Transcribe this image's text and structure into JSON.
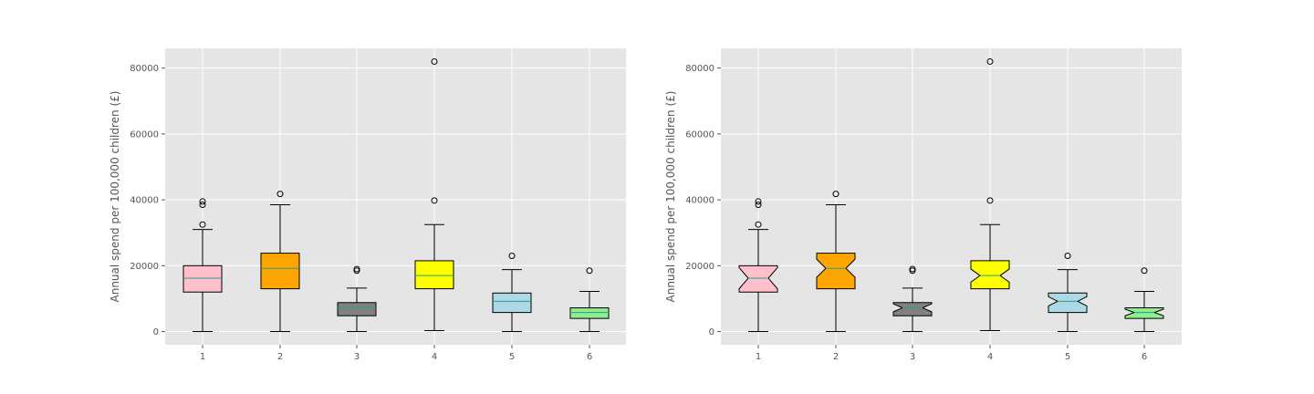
{
  "chart_data": [
    {
      "type": "boxplot",
      "notched": false,
      "style": "ggplot",
      "ylabel": "Annual spend per 100,000 children (£)",
      "categories": [
        "1",
        "2",
        "3",
        "4",
        "5",
        "6"
      ],
      "yticks": [
        0,
        20000,
        40000,
        60000,
        80000
      ],
      "ytick_labels": [
        "0",
        "20000",
        "40000",
        "60000",
        "80000"
      ],
      "ylim": [
        -4000,
        86000
      ],
      "grid": true,
      "boxes": [
        {
          "label": "1",
          "color": "#FFC0CB",
          "whislo": 0,
          "q1": 12000,
          "med": 16200,
          "q3": 20000,
          "whishi": 31000,
          "fliers": [
            32500,
            38500,
            39500
          ]
        },
        {
          "label": "2",
          "color": "#FFA500",
          "whislo": 0,
          "q1": 13000,
          "med": 19200,
          "q3": 23800,
          "whishi": 38500,
          "fliers": [
            41800
          ]
        },
        {
          "label": "3",
          "color": "#808080",
          "whislo": 0,
          "q1": 4800,
          "med": 7200,
          "q3": 8800,
          "whishi": 13200,
          "fliers": [
            18500,
            19000
          ]
        },
        {
          "label": "4",
          "color": "#FFFF00",
          "whislo": 300,
          "q1": 13000,
          "med": 17000,
          "q3": 21500,
          "whishi": 32500,
          "fliers": [
            39800,
            82000
          ]
        },
        {
          "label": "5",
          "color": "#ADD8E6",
          "whislo": 0,
          "q1": 5800,
          "med": 9200,
          "q3": 11700,
          "whishi": 18800,
          "fliers": [
            23000
          ]
        },
        {
          "label": "6",
          "color": "#90EE90",
          "whislo": 0,
          "q1": 4000,
          "med": 5800,
          "q3": 7200,
          "whishi": 12200,
          "fliers": [
            18500
          ]
        }
      ]
    },
    {
      "type": "boxplot",
      "notched": true,
      "style": "ggplot",
      "ylabel": "Annual spend per 100,000 children (£)",
      "categories": [
        "1",
        "2",
        "3",
        "4",
        "5",
        "6"
      ],
      "yticks": [
        0,
        20000,
        40000,
        60000,
        80000
      ],
      "ytick_labels": [
        "0",
        "20000",
        "40000",
        "60000",
        "80000"
      ],
      "ylim": [
        -4000,
        86000
      ],
      "grid": true,
      "boxes": [
        {
          "label": "1",
          "color": "#FFC0CB",
          "whislo": 0,
          "q1": 12000,
          "med": 16200,
          "q3": 20000,
          "whishi": 31000,
          "fliers": [
            32500,
            38500,
            39500
          ],
          "notch": [
            13000,
            19400
          ]
        },
        {
          "label": "2",
          "color": "#FFA500",
          "whislo": 0,
          "q1": 13000,
          "med": 19200,
          "q3": 23800,
          "whishi": 38500,
          "fliers": [
            41800
          ],
          "notch": [
            16500,
            22000
          ]
        },
        {
          "label": "3",
          "color": "#808080",
          "whislo": 0,
          "q1": 4800,
          "med": 7200,
          "q3": 8800,
          "whishi": 13200,
          "fliers": [
            18500,
            19000
          ],
          "notch": [
            6000,
            8400
          ]
        },
        {
          "label": "4",
          "color": "#FFFF00",
          "whislo": 300,
          "q1": 13000,
          "med": 17000,
          "q3": 21500,
          "whishi": 32500,
          "fliers": [
            39800,
            82000
          ],
          "notch": [
            15000,
            19000
          ]
        },
        {
          "label": "5",
          "color": "#ADD8E6",
          "whislo": 0,
          "q1": 5800,
          "med": 9200,
          "q3": 11700,
          "whishi": 18800,
          "fliers": [
            23000
          ],
          "notch": [
            7800,
            10600
          ]
        },
        {
          "label": "6",
          "color": "#90EE90",
          "whislo": 0,
          "q1": 4000,
          "med": 5800,
          "q3": 7200,
          "whishi": 12200,
          "fliers": [
            18500
          ],
          "notch": [
            4800,
            6800
          ]
        }
      ]
    }
  ],
  "colors": {
    "plot_background": "#E5E5E5",
    "grid": "#FFFFFF",
    "tick_text": "#555555",
    "median_line": "#2A9D8F"
  }
}
